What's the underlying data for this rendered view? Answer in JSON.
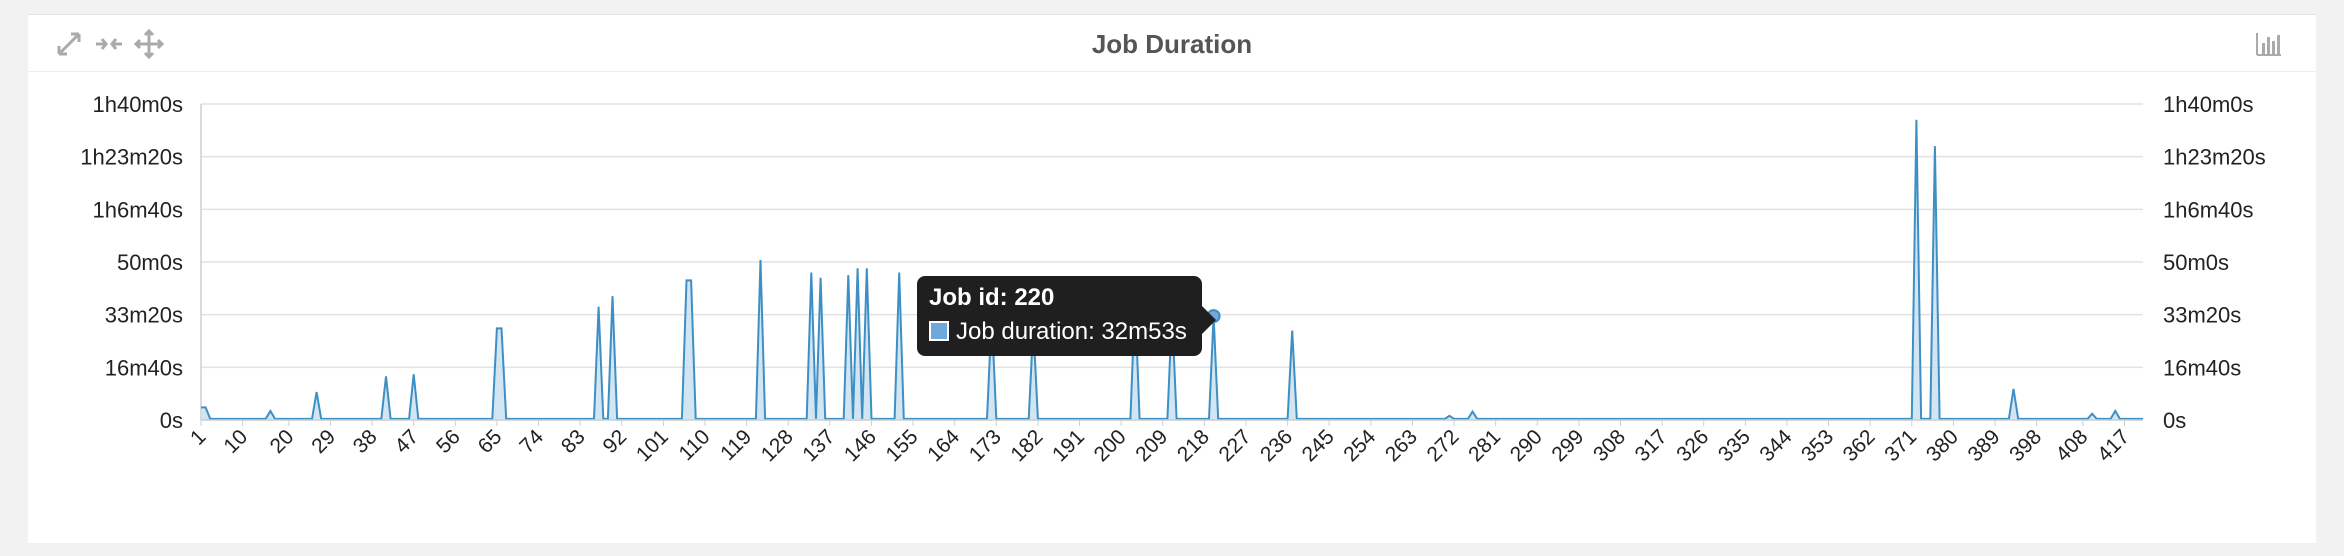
{
  "panel": {
    "title": "Job Duration",
    "icons": [
      "expand-icon",
      "collapse-icon",
      "move-icon",
      "bar-chart-icon"
    ]
  },
  "tooltip": {
    "title": "Job id: 220",
    "series_label": "Job duration: 32m53s"
  },
  "colors": {
    "line": "#3d8fc4",
    "fill": "#c7dff0",
    "grid": "#e2e2e2",
    "tooltip_bg": "#1f1f1f"
  },
  "chart_data": {
    "type": "area",
    "title": "Job Duration",
    "xlabel": "",
    "ylabel": "",
    "grid": true,
    "legend": "none",
    "x_range": [
      1,
      421
    ],
    "x_ticks": [
      1,
      10,
      20,
      29,
      38,
      47,
      56,
      65,
      74,
      83,
      92,
      101,
      110,
      119,
      128,
      137,
      146,
      155,
      164,
      173,
      182,
      191,
      200,
      209,
      218,
      227,
      236,
      245,
      254,
      263,
      272,
      281,
      290,
      299,
      308,
      317,
      326,
      335,
      344,
      353,
      362,
      371,
      380,
      389,
      398,
      408,
      417
    ],
    "y_range_seconds": [
      0,
      6000
    ],
    "y_ticks": [
      {
        "value": 0,
        "label": "0s"
      },
      {
        "value": 1000,
        "label": "16m40s"
      },
      {
        "value": 2000,
        "label": "33m20s"
      },
      {
        "value": 3000,
        "label": "50m0s"
      },
      {
        "value": 4000,
        "label": "1h6m40s"
      },
      {
        "value": 5000,
        "label": "1h23m20s"
      },
      {
        "value": 6000,
        "label": "1h40m0s"
      }
    ],
    "series": [
      {
        "units": "seconds",
        "baseline": 20,
        "points": [
          {
            "x": 1,
            "y": 240
          },
          {
            "x": 2,
            "y": 240
          },
          {
            "x": 16,
            "y": 170
          },
          {
            "x": 26,
            "y": 530
          },
          {
            "x": 41,
            "y": 830
          },
          {
            "x": 47,
            "y": 870
          },
          {
            "x": 65,
            "y": 1740
          },
          {
            "x": 66,
            "y": 1740
          },
          {
            "x": 87,
            "y": 2150
          },
          {
            "x": 90,
            "y": 2350
          },
          {
            "x": 106,
            "y": 2650
          },
          {
            "x": 107,
            "y": 2650
          },
          {
            "x": 122,
            "y": 3040
          },
          {
            "x": 133,
            "y": 2800
          },
          {
            "x": 135,
            "y": 2700
          },
          {
            "x": 141,
            "y": 2750
          },
          {
            "x": 143,
            "y": 2880
          },
          {
            "x": 145,
            "y": 2880
          },
          {
            "x": 152,
            "y": 2800
          },
          {
            "x": 172,
            "y": 2000
          },
          {
            "x": 181,
            "y": 1800
          },
          {
            "x": 203,
            "y": 2300
          },
          {
            "x": 211,
            "y": 2050
          },
          {
            "x": 220,
            "y": 1973
          },
          {
            "x": 237,
            "y": 1700
          },
          {
            "x": 271,
            "y": 80
          },
          {
            "x": 276,
            "y": 160
          },
          {
            "x": 372,
            "y": 5700
          },
          {
            "x": 376,
            "y": 5200
          },
          {
            "x": 393,
            "y": 590
          },
          {
            "x": 410,
            "y": 120
          },
          {
            "x": 415,
            "y": 170
          }
        ]
      }
    ],
    "highlight": {
      "x": 220,
      "y": 1973
    }
  }
}
